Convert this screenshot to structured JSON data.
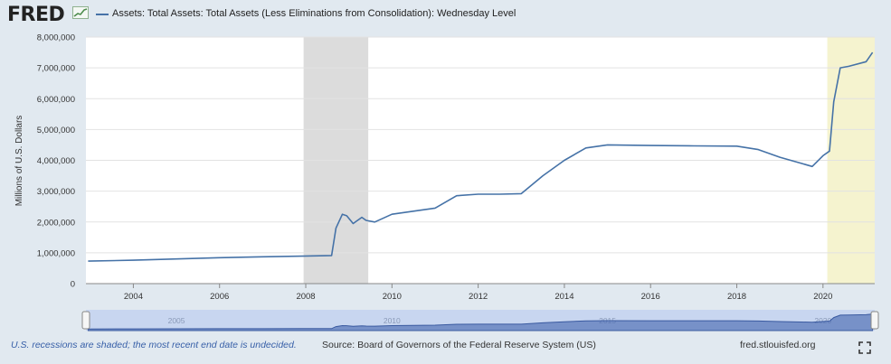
{
  "header": {
    "logo": "FRED",
    "legend_label": "Assets: Total Assets: Total Assets (Less Eliminations from Consolidation): Wednesday Level"
  },
  "footer": {
    "recession_note": "U.S. recessions are shaded; the most recent end date is undecided.",
    "source": "Source: Board of Governors of the Federal Reserve System (US)",
    "url": "fred.stlouisfed.org"
  },
  "navigator": {
    "tick_labels": [
      "2005",
      "2010",
      "2015",
      "2020"
    ]
  },
  "chart_data": {
    "type": "line",
    "title": "",
    "xlabel": "",
    "ylabel": "Millions of U.S. Dollars",
    "xlim": [
      2002.9,
      2021.2
    ],
    "ylim": [
      0,
      8000000
    ],
    "x_tick_labels": [
      "2004",
      "2006",
      "2008",
      "2010",
      "2012",
      "2014",
      "2016",
      "2018",
      "2020"
    ],
    "y_tick_values": [
      0,
      1000000,
      2000000,
      3000000,
      4000000,
      5000000,
      6000000,
      7000000,
      8000000
    ],
    "y_tick_labels": [
      "0",
      "1,000,000",
      "2,000,000",
      "3,000,000",
      "4,000,000",
      "5,000,000",
      "6,000,000",
      "7,000,000",
      "8,000,000"
    ],
    "grid": true,
    "line_color": "#4572a7",
    "recession_bands": [
      {
        "start": 2007.95,
        "end": 2009.45,
        "color": "#dcdcdc"
      },
      {
        "start": 2020.1,
        "end": 2021.2,
        "color": "#f5f3cf"
      }
    ],
    "series": [
      {
        "name": "Assets: Total Assets: Total Assets (Less Eliminations from Consolidation): Wednesday Level",
        "x": [
          2002.95,
          2004.0,
          2005.0,
          2006.0,
          2007.0,
          2007.9,
          2008.6,
          2008.7,
          2008.85,
          2008.95,
          2009.1,
          2009.3,
          2009.4,
          2009.6,
          2010.0,
          2010.5,
          2011.0,
          2011.5,
          2012.0,
          2012.5,
          2013.0,
          2013.5,
          2014.0,
          2014.5,
          2015.0,
          2016.0,
          2017.0,
          2018.0,
          2018.5,
          2019.0,
          2019.5,
          2019.75,
          2020.0,
          2020.15,
          2020.25,
          2020.4,
          2020.6,
          2021.0,
          2021.15
        ],
        "values": [
          730000,
          760000,
          800000,
          840000,
          870000,
          890000,
          910000,
          1800000,
          2250000,
          2200000,
          1950000,
          2150000,
          2050000,
          2000000,
          2250000,
          2350000,
          2450000,
          2850000,
          2900000,
          2900000,
          2920000,
          3500000,
          4000000,
          4400000,
          4500000,
          4480000,
          4470000,
          4460000,
          4350000,
          4100000,
          3900000,
          3800000,
          4150000,
          4300000,
          5900000,
          7000000,
          7050000,
          7200000,
          7500000
        ]
      }
    ]
  }
}
